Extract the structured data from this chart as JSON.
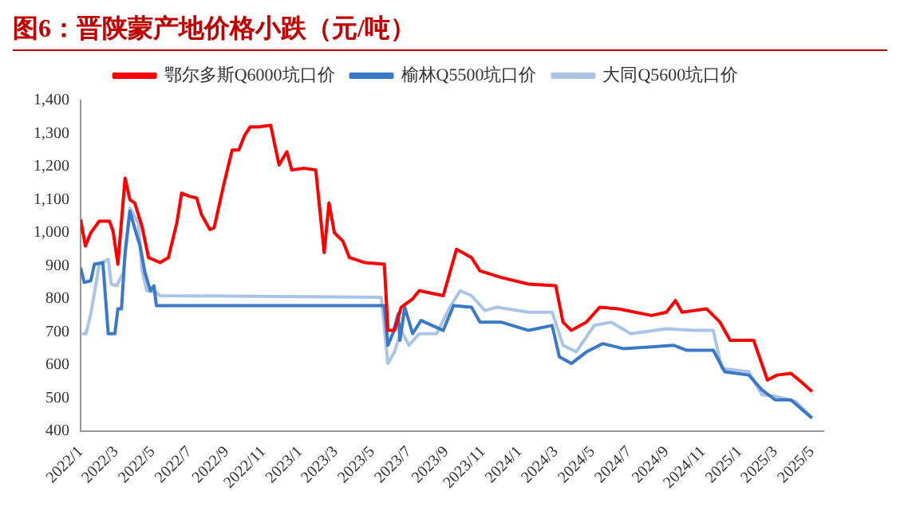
{
  "chart_data": {
    "type": "line",
    "title": "图6：晋陕蒙产地价格小跌（元/吨）",
    "xlim": [
      "2022-01-01",
      "2025-05-20"
    ],
    "xticks": [
      {
        "value": "2022-01",
        "label": "2022/1"
      },
      {
        "value": "2022-03",
        "label": "2022/3"
      },
      {
        "value": "2022-05",
        "label": "2022/5"
      },
      {
        "value": "2022-07",
        "label": "2022/7"
      },
      {
        "value": "2022-09",
        "label": "2022/9"
      },
      {
        "value": "2022-11",
        "label": "2022/11"
      },
      {
        "value": "2023-01",
        "label": "2023/1"
      },
      {
        "value": "2023-03",
        "label": "2023/3"
      },
      {
        "value": "2023-05",
        "label": "2023/5"
      },
      {
        "value": "2023-07",
        "label": "2023/7"
      },
      {
        "value": "2023-09",
        "label": "2023/9"
      },
      {
        "value": "2023-11",
        "label": "2023/11"
      },
      {
        "value": "2024-01",
        "label": "2024/1"
      },
      {
        "value": "2024-03",
        "label": "2024/3"
      },
      {
        "value": "2024-05",
        "label": "2024/5"
      },
      {
        "value": "2024-07",
        "label": "2024/7"
      },
      {
        "value": "2024-09",
        "label": "2024/9"
      },
      {
        "value": "2024-11",
        "label": "2024/11"
      },
      {
        "value": "2025-01",
        "label": "2025/1"
      },
      {
        "value": "2025-03",
        "label": "2025/3"
      },
      {
        "value": "2025-05",
        "label": "2025/5"
      }
    ],
    "ylim": [
      400,
      1400
    ],
    "yticks": [
      {
        "value": 400,
        "label": "400"
      },
      {
        "value": 500,
        "label": "500"
      },
      {
        "value": 600,
        "label": "600"
      },
      {
        "value": 700,
        "label": "700"
      },
      {
        "value": 800,
        "label": "800"
      },
      {
        "value": 900,
        "label": "900"
      },
      {
        "value": 1000,
        "label": "1,000"
      },
      {
        "value": 1100,
        "label": "1,100"
      },
      {
        "value": 1200,
        "label": "1,200"
      },
      {
        "value": 1300,
        "label": "1,300"
      },
      {
        "value": 1400,
        "label": "1,400"
      }
    ],
    "grid": false,
    "legend": "top",
    "marker": "none",
    "line_style": "solid",
    "series": [
      {
        "name": "鄂尔多斯Q6000坑口价",
        "color": "#ff0000",
        "x": [
          "2022-01-01",
          "2022-01-09",
          "2022-01-18",
          "2022-02-01",
          "2022-02-18",
          "2022-02-24",
          "2022-03-04",
          "2022-03-16",
          "2022-03-24",
          "2022-04-01",
          "2022-04-13",
          "2022-04-24",
          "2022-05-13",
          "2022-05-27",
          "2022-06-10",
          "2022-06-18",
          "2022-07-01",
          "2022-07-13",
          "2022-07-21",
          "2022-08-04",
          "2022-08-11",
          "2022-08-27",
          "2022-09-10",
          "2022-09-21",
          "2022-10-01",
          "2022-10-10",
          "2022-10-24",
          "2022-11-13",
          "2022-11-27",
          "2022-12-10",
          "2022-12-18",
          "2023-01-07",
          "2023-01-27",
          "2023-02-10",
          "2023-02-18",
          "2023-02-27",
          "2023-03-13",
          "2023-03-24",
          "2023-04-18",
          "2023-05-21",
          "2023-05-27",
          "2023-06-07",
          "2023-06-18",
          "2023-07-07",
          "2023-07-18",
          "2023-08-27",
          "2023-09-18",
          "2023-10-13",
          "2023-10-27",
          "2023-12-01",
          "2024-01-16",
          "2024-03-01",
          "2024-03-13",
          "2024-03-27",
          "2024-04-21",
          "2024-05-13",
          "2024-06-13",
          "2024-08-07",
          "2024-09-01",
          "2024-09-16",
          "2024-09-27",
          "2024-11-07",
          "2024-11-29",
          "2024-12-16",
          "2025-01-24",
          "2025-02-16",
          "2025-03-04",
          "2025-03-27",
          "2025-04-16",
          "2025-05-01"
        ],
        "values": [
          1040,
          960,
          1000,
          1035,
          1035,
          1005,
          905,
          1165,
          1100,
          1090,
          1020,
          925,
          910,
          925,
          1030,
          1120,
          1110,
          1105,
          1055,
          1010,
          1015,
          1145,
          1250,
          1250,
          1295,
          1320,
          1320,
          1325,
          1205,
          1245,
          1190,
          1195,
          1190,
          940,
          1090,
          1000,
          975,
          925,
          910,
          905,
          705,
          705,
          775,
          800,
          825,
          810,
          950,
          925,
          885,
          865,
          845,
          840,
          730,
          705,
          730,
          775,
          770,
          750,
          760,
          795,
          760,
          770,
          730,
          675,
          675,
          555,
          570,
          575,
          545,
          520
        ]
      },
      {
        "name": "榆林Q5500坑口价",
        "color": "#3a78c8",
        "x": [
          "2022-01-01",
          "2022-01-07",
          "2022-01-18",
          "2022-01-24",
          "2022-02-07",
          "2022-02-16",
          "2022-02-27",
          "2022-03-04",
          "2022-03-10",
          "2022-03-16",
          "2022-03-24",
          "2022-04-04",
          "2022-04-10",
          "2022-04-18",
          "2022-04-27",
          "2022-05-03",
          "2022-05-07",
          "2023-05-21",
          "2023-05-27",
          "2023-06-04",
          "2023-06-13",
          "2023-06-16",
          "2023-06-24",
          "2023-07-07",
          "2023-07-21",
          "2023-08-27",
          "2023-09-13",
          "2023-10-13",
          "2023-10-27",
          "2023-12-01",
          "2024-01-16",
          "2024-02-24",
          "2024-03-07",
          "2024-03-27",
          "2024-04-21",
          "2024-05-18",
          "2024-06-21",
          "2024-08-07",
          "2024-09-13",
          "2024-10-04",
          "2024-11-18",
          "2024-12-07",
          "2025-01-16",
          "2025-02-07",
          "2025-03-01",
          "2025-03-27",
          "2025-05-01"
        ],
        "values": [
          895,
          850,
          855,
          905,
          910,
          695,
          695,
          770,
          770,
          940,
          1065,
          995,
          960,
          880,
          825,
          840,
          780,
          780,
          660,
          695,
          755,
          675,
          775,
          695,
          735,
          705,
          780,
          775,
          730,
          730,
          705,
          720,
          625,
          605,
          640,
          665,
          650,
          655,
          660,
          645,
          645,
          580,
          570,
          525,
          495,
          495,
          440
        ]
      },
      {
        "name": "大同Q5600坑口价",
        "color": "#a9c4e6",
        "x": [
          "2022-01-03",
          "2022-01-10",
          "2022-01-18",
          "2022-02-01",
          "2022-02-16",
          "2022-02-21",
          "2022-03-02",
          "2022-03-13",
          "2022-03-24",
          "2022-04-07",
          "2022-04-13",
          "2022-04-21",
          "2022-05-07",
          "2022-05-13",
          "2023-05-16",
          "2023-05-27",
          "2023-06-07",
          "2023-06-18",
          "2023-07-01",
          "2023-07-18",
          "2023-08-16",
          "2023-09-07",
          "2023-09-24",
          "2023-10-13",
          "2023-11-04",
          "2023-11-24",
          "2024-01-16",
          "2024-02-24",
          "2024-03-13",
          "2024-04-04",
          "2024-05-04",
          "2024-06-01",
          "2024-07-04",
          "2024-09-01",
          "2024-10-16",
          "2024-11-18",
          "2024-12-02",
          "2025-01-16",
          "2025-02-07",
          "2025-03-04",
          "2025-04-04",
          "2025-05-01"
        ],
        "values": [
          695,
          695,
          755,
          905,
          920,
          845,
          840,
          880,
          1075,
          1030,
          890,
          825,
          820,
          810,
          805,
          605,
          640,
          705,
          660,
          695,
          695,
          775,
          825,
          810,
          765,
          775,
          760,
          760,
          660,
          640,
          720,
          730,
          695,
          710,
          705,
          705,
          590,
          580,
          510,
          505,
          490,
          440
        ]
      }
    ]
  }
}
